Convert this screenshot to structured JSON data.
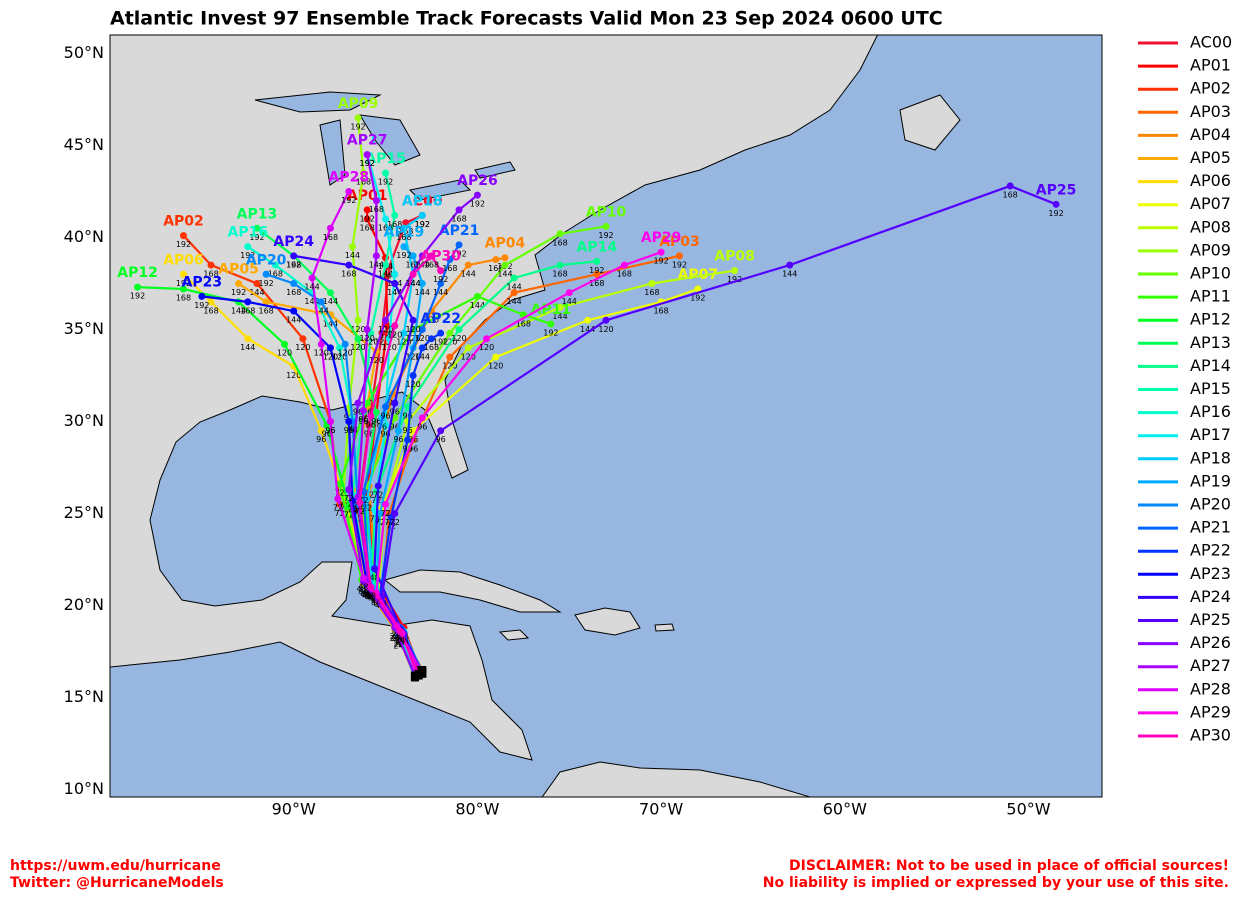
{
  "chart_data": {
    "type": "track",
    "title": "Atlantic Invest 97 Ensemble Track Forecasts Valid Mon 23 Sep 2024 0600 UTC",
    "xlim": [
      -100,
      -46
    ],
    "ylim": [
      9.6,
      51
    ],
    "xticks": [
      {
        "value": -90,
        "label": "90°W"
      },
      {
        "value": -80,
        "label": "80°W"
      },
      {
        "value": -70,
        "label": "70°W"
      },
      {
        "value": -60,
        "label": "60°W"
      },
      {
        "value": -50,
        "label": "50°W"
      }
    ],
    "yticks": [
      {
        "value": 10,
        "label": "10°N"
      },
      {
        "value": 15,
        "label": "15°N"
      },
      {
        "value": 20,
        "label": "20°N"
      },
      {
        "value": 25,
        "label": "25°N"
      },
      {
        "value": 30,
        "label": "30°N"
      },
      {
        "value": 35,
        "label": "35°N"
      },
      {
        "value": 40,
        "label": "40°N"
      },
      {
        "value": 45,
        "label": "45°N"
      },
      {
        "value": 50,
        "label": "50°N"
      }
    ],
    "hours": [
      24,
      48,
      72,
      96,
      120,
      144,
      168,
      192
    ],
    "series": [
      {
        "name": "AC00",
        "color": "#ee1133",
        "lon": [
          -83.3,
          -84.2,
          -85.8,
          -86.5,
          -85.9,
          -85.2,
          -84.8,
          -83.9,
          -83.0
        ],
        "lat": [
          16.3,
          18.6,
          20.9,
          25.2,
          29.8,
          34.8,
          38.4,
          40.8,
          41.2
        ]
      },
      {
        "name": "AP01",
        "color": "#ff0000",
        "lon": [
          -83.1,
          -84.0,
          -85.5,
          -86.0,
          -85.5,
          -84.9,
          -85.0,
          -86.0,
          -86.0
        ],
        "lat": [
          16.4,
          18.8,
          21.3,
          26.0,
          30.5,
          35.2,
          38.9,
          41.0,
          41.5
        ]
      },
      {
        "name": "AP02",
        "color": "#ff3300",
        "lon": [
          -83.0,
          -84.1,
          -86.0,
          -87.5,
          -88.0,
          -89.5,
          -92.0,
          -94.5,
          -96.0
        ],
        "lat": [
          16.5,
          18.5,
          21.0,
          25.5,
          30.0,
          34.5,
          37.5,
          38.5,
          40.1
        ]
      },
      {
        "name": "AP03",
        "color": "#ff6600",
        "lon": [
          -83.2,
          -84.0,
          -85.2,
          -84.8,
          -83.5,
          -81.5,
          -78.0,
          -73.5,
          -69.0
        ],
        "lat": [
          16.2,
          18.4,
          20.6,
          25.0,
          29.0,
          33.5,
          37.0,
          38.0,
          39.0
        ]
      },
      {
        "name": "AP04",
        "color": "#ff8800",
        "lon": [
          -83.4,
          -84.3,
          -85.5,
          -85.9,
          -84.6,
          -82.5,
          -80.5,
          -79.0,
          -78.5
        ],
        "lat": [
          16.1,
          18.3,
          20.8,
          26.5,
          31.5,
          36.0,
          38.5,
          38.8,
          38.9
        ]
      },
      {
        "name": "AP05",
        "color": "#ffaa00",
        "lon": [
          -83.3,
          -84.5,
          -86.2,
          -86.8,
          -86.0,
          -85.5,
          -88.0,
          -91.5,
          -93.0
        ],
        "lat": [
          16.3,
          18.7,
          21.2,
          26.3,
          30.8,
          33.8,
          35.8,
          36.5,
          37.5
        ]
      },
      {
        "name": "AP06",
        "color": "#ffdd00",
        "lon": [
          -83.1,
          -84.2,
          -86.0,
          -87.2,
          -88.5,
          -90.0,
          -92.5,
          -94.5,
          -96.0
        ],
        "lat": [
          16.4,
          18.5,
          21.0,
          25.8,
          29.5,
          33.0,
          34.5,
          36.5,
          38.0
        ]
      },
      {
        "name": "AP07",
        "color": "#eeff00",
        "lon": [
          -83.2,
          -84.1,
          -85.6,
          -85.2,
          -83.5,
          -79.0,
          -74.0,
          -70.0,
          -68.0
        ],
        "lat": [
          16.2,
          18.6,
          20.9,
          25.3,
          29.5,
          33.5,
          35.5,
          36.5,
          37.2
        ]
      },
      {
        "name": "AP08",
        "color": "#bbff00",
        "lon": [
          -83.0,
          -84.0,
          -85.4,
          -85.0,
          -83.8,
          -80.5,
          -75.5,
          -70.5,
          -66.0
        ],
        "lat": [
          16.3,
          18.4,
          20.7,
          25.5,
          30.0,
          34.0,
          36.2,
          37.5,
          38.2
        ]
      },
      {
        "name": "AP09",
        "color": "#99ff00",
        "lon": [
          -83.2,
          -84.3,
          -86.1,
          -87.3,
          -87.0,
          -86.5,
          -86.8,
          -86.2,
          -86.5
        ],
        "lat": [
          16.5,
          18.8,
          21.1,
          25.9,
          30.7,
          35.5,
          39.5,
          43.5,
          46.5
        ]
      },
      {
        "name": "AP10",
        "color": "#66ff00",
        "lon": [
          -83.3,
          -84.2,
          -85.9,
          -86.3,
          -84.5,
          -81.5,
          -78.5,
          -75.5,
          -73.0
        ],
        "lat": [
          16.2,
          18.7,
          21.0,
          25.7,
          30.2,
          34.8,
          38.5,
          40.2,
          40.6
        ]
      },
      {
        "name": "AP11",
        "color": "#33ff00",
        "lon": [
          -83.1,
          -84.4,
          -86.3,
          -87.5,
          -86.0,
          -83.5,
          -80.0,
          -77.5,
          -76.0
        ],
        "lat": [
          16.4,
          18.9,
          21.4,
          26.6,
          31.0,
          35.0,
          36.8,
          35.8,
          35.3
        ]
      },
      {
        "name": "AP12",
        "color": "#00ff22",
        "lon": [
          -83.2,
          -84.0,
          -85.7,
          -87.0,
          -88.2,
          -90.5,
          -93.0,
          -96.0,
          -98.5
        ],
        "lat": [
          16.3,
          18.5,
          20.9,
          25.4,
          29.8,
          34.2,
          36.5,
          37.2,
          37.3
        ]
      },
      {
        "name": "AP13",
        "color": "#00ff55",
        "lon": [
          -83.4,
          -84.3,
          -85.5,
          -86.2,
          -85.5,
          -86.5,
          -88.0,
          -90.0,
          -92.0
        ],
        "lat": [
          16.2,
          18.4,
          20.8,
          25.8,
          30.5,
          34.5,
          37.0,
          39.0,
          40.5
        ]
      },
      {
        "name": "AP14",
        "color": "#00ff88",
        "lon": [
          -83.0,
          -84.1,
          -85.8,
          -85.5,
          -83.8,
          -81.0,
          -78.0,
          -75.5,
          -73.5
        ],
        "lat": [
          16.4,
          18.6,
          21.1,
          26.2,
          30.8,
          35.0,
          37.8,
          38.5,
          38.7
        ]
      },
      {
        "name": "AP15",
        "color": "#00ffaa",
        "lon": [
          -83.2,
          -84.4,
          -86.0,
          -86.8,
          -86.2,
          -85.8,
          -85.0,
          -84.5,
          -85.0
        ],
        "lat": [
          16.3,
          18.7,
          21.2,
          26.0,
          30.5,
          34.8,
          38.5,
          41.2,
          43.5
        ]
      },
      {
        "name": "AP16",
        "color": "#00ffcc",
        "lon": [
          -83.3,
          -84.2,
          -85.6,
          -86.5,
          -86.8,
          -87.5,
          -89.0,
          -91.0,
          -92.5
        ],
        "lat": [
          16.2,
          18.5,
          20.9,
          25.6,
          30.2,
          34.0,
          37.0,
          38.5,
          39.5
        ]
      },
      {
        "name": "AP17",
        "color": "#00eeee",
        "lon": [
          -83.1,
          -84.0,
          -85.4,
          -85.6,
          -85.0,
          -84.8,
          -84.5,
          -85.0,
          -86.0
        ],
        "lat": [
          16.5,
          18.6,
          20.7,
          25.2,
          29.8,
          34.5,
          38.0,
          41.0,
          44.5
        ]
      },
      {
        "name": "AP18",
        "color": "#00ccff",
        "lon": [
          -83.2,
          -84.1,
          -85.7,
          -86.0,
          -85.2,
          -84.0,
          -83.5,
          -84.0,
          -83.0
        ],
        "lat": [
          16.3,
          18.5,
          21.0,
          25.8,
          30.2,
          34.8,
          38.0,
          40.5,
          41.2
        ]
      },
      {
        "name": "AP19",
        "color": "#00aaff",
        "lon": [
          -83.4,
          -84.3,
          -85.5,
          -85.3,
          -84.3,
          -83.5,
          -83.0,
          -83.5,
          -84.0
        ],
        "lat": [
          16.1,
          18.4,
          20.6,
          25.0,
          29.5,
          34.0,
          37.5,
          39.0,
          39.5
        ]
      },
      {
        "name": "AP20",
        "color": "#0088ff",
        "lon": [
          -83.0,
          -84.1,
          -85.8,
          -86.5,
          -86.8,
          -87.2,
          -88.5,
          -90.0,
          -91.5
        ],
        "lat": [
          16.4,
          18.7,
          21.0,
          25.5,
          30.0,
          34.2,
          36.5,
          37.5,
          38.0
        ]
      },
      {
        "name": "AP21",
        "color": "#0066ff",
        "lon": [
          -83.2,
          -84.2,
          -85.9,
          -86.2,
          -85.0,
          -83.0,
          -82.0,
          -81.5,
          -81.0
        ],
        "lat": [
          16.3,
          18.8,
          21.2,
          26.2,
          30.8,
          35.0,
          37.5,
          38.8,
          39.6
        ]
      },
      {
        "name": "AP22",
        "color": "#0033ff",
        "lon": [
          -83.3,
          -84.0,
          -85.3,
          -84.7,
          -83.8,
          -83.5,
          -83.0,
          -82.5,
          -82.0
        ],
        "lat": [
          16.2,
          18.5,
          20.5,
          24.8,
          29.0,
          32.5,
          34.0,
          34.5,
          34.8
        ]
      },
      {
        "name": "AP23",
        "color": "#0000ff",
        "lon": [
          -83.1,
          -84.2,
          -86.0,
          -86.8,
          -87.0,
          -88.0,
          -90.0,
          -92.5,
          -95.0
        ],
        "lat": [
          16.4,
          18.7,
          21.1,
          25.7,
          30.0,
          34.0,
          36.0,
          36.5,
          36.8
        ]
      },
      {
        "name": "AP24",
        "color": "#3300ff",
        "lon": [
          -83.2,
          -84.1,
          -85.6,
          -85.4,
          -84.5,
          -83.5,
          -84.5,
          -87.0,
          -90.0
        ],
        "lat": [
          16.3,
          18.6,
          22.0,
          26.5,
          31.0,
          35.5,
          37.5,
          38.5,
          39.0
        ]
      },
      {
        "name": "AP25",
        "color": "#5500ff",
        "lon": [
          -83.0,
          -84.0,
          -85.2,
          -84.5,
          -82.0,
          -73.0,
          -63.0,
          -51.0,
          -48.5
        ],
        "lat": [
          16.3,
          18.4,
          20.5,
          25.0,
          29.5,
          35.5,
          38.5,
          42.8,
          41.8
        ]
      },
      {
        "name": "AP26",
        "color": "#8800ff",
        "lon": [
          -83.4,
          -84.5,
          -86.2,
          -87.0,
          -86.5,
          -85.0,
          -83.0,
          -81.0,
          -80.0
        ],
        "lat": [
          16.2,
          18.8,
          21.3,
          26.3,
          31.0,
          35.5,
          39.0,
          41.5,
          42.3
        ]
      },
      {
        "name": "AP27",
        "color": "#aa00ff",
        "lon": [
          -83.2,
          -84.3,
          -85.9,
          -86.5,
          -86.2,
          -86.0,
          -85.5,
          -85.5,
          -86.0
        ],
        "lat": [
          16.4,
          18.7,
          21.0,
          25.9,
          30.6,
          35.0,
          39.0,
          42.0,
          44.5
        ]
      },
      {
        "name": "AP28",
        "color": "#dd00ff",
        "lon": [
          -83.1,
          -84.4,
          -86.2,
          -87.6,
          -88.0,
          -88.5,
          -89.0,
          -88.0,
          -87.0
        ],
        "lat": [
          16.5,
          18.9,
          21.5,
          25.8,
          30.0,
          34.2,
          37.8,
          40.5,
          42.5
        ]
      },
      {
        "name": "AP29",
        "color": "#ff00ee",
        "lon": [
          -83.3,
          -84.1,
          -85.5,
          -85.0,
          -83.0,
          -79.5,
          -75.0,
          -72.0,
          -70.0
        ],
        "lat": [
          16.2,
          18.5,
          20.7,
          25.5,
          30.2,
          34.5,
          37.0,
          38.5,
          39.2
        ]
      },
      {
        "name": "AP30",
        "color": "#ff00bb",
        "lon": [
          -83.2,
          -84.2,
          -85.8,
          -86.4,
          -85.8,
          -84.5,
          -83.5,
          -82.5,
          -82.0
        ],
        "lat": [
          16.3,
          18.6,
          21.0,
          25.6,
          30.3,
          35.2,
          38.0,
          39.0,
          38.2
        ]
      }
    ]
  },
  "footer": {
    "left": [
      "https://uwm.edu/hurricane",
      "Twitter: @HurricaneModels"
    ],
    "right": [
      "DISCLAIMER: Not to be used in place of official sources!",
      "No liability is implied or expressed by your use of this site."
    ]
  }
}
